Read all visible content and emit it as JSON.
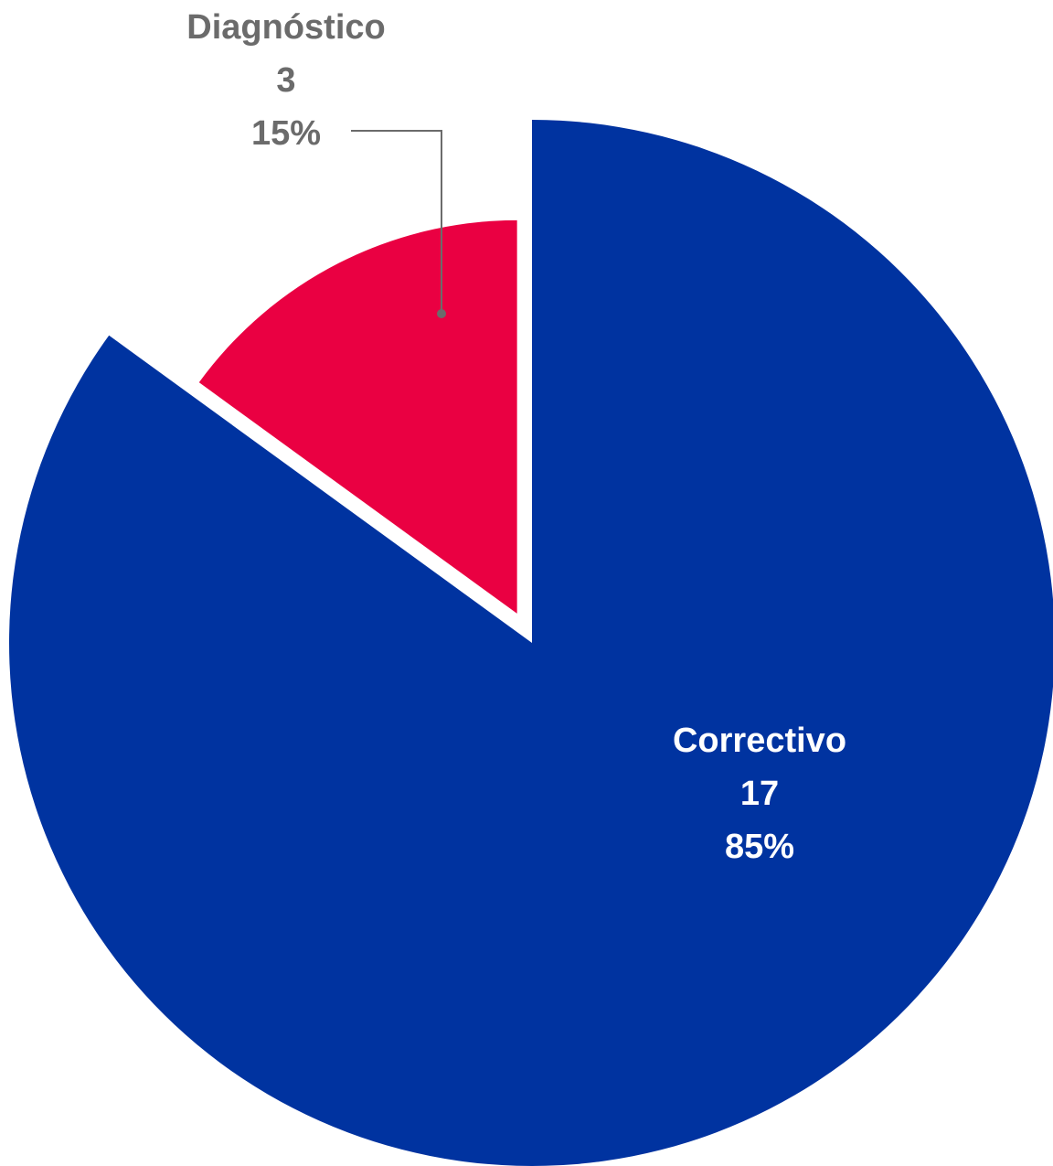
{
  "chart_data": {
    "type": "pie",
    "title": "",
    "slices": [
      {
        "label": "Correctivo",
        "value": 17,
        "percent_label": "85%",
        "color": "#0033A0",
        "label_color": "#ffffff"
      },
      {
        "label": "Diagnóstico",
        "value": 3,
        "percent_label": "15%",
        "color": "#EA0042",
        "label_color": "#6b6b6b",
        "exploded": true
      }
    ],
    "leader_line_color": "#6b6b6b"
  }
}
